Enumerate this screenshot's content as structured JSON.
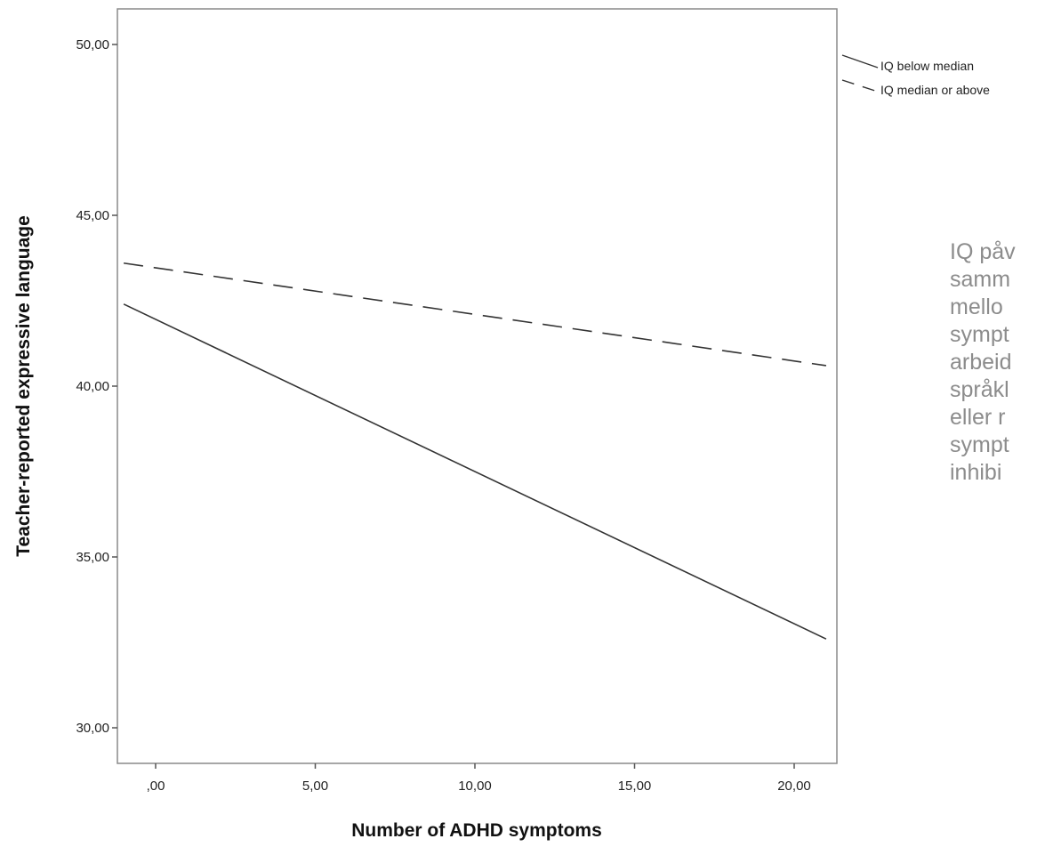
{
  "chart_data": {
    "type": "line",
    "xlabel": "Number of ADHD symptoms",
    "ylabel": "Teacher-reported expressive language",
    "xlim": [
      -1,
      21
    ],
    "ylim": [
      29,
      51
    ],
    "x_ticks": [
      0,
      5,
      10,
      15,
      20
    ],
    "x_tick_labels": [
      ",00",
      "5,00",
      "10,00",
      "15,00",
      "20,00"
    ],
    "y_ticks": [
      30,
      35,
      40,
      45,
      50
    ],
    "y_tick_labels": [
      "30,00",
      "35,00",
      "40,00",
      "45,00",
      "50,00"
    ],
    "grid": false,
    "legend_position": "outside-top-right",
    "series": [
      {
        "name": "IQ below median",
        "style": "solid",
        "color": "#333333",
        "x": [
          -1,
          21
        ],
        "y": [
          42.4,
          32.6
        ]
      },
      {
        "name": "IQ median or above",
        "style": "dashed",
        "color": "#333333",
        "x": [
          -1,
          21
        ],
        "y": [
          43.6,
          40.6
        ]
      }
    ]
  },
  "annotation": {
    "color": "#8c8c8c",
    "lines": [
      "IQ påv",
      "samm",
      "mello",
      "sympt",
      "arbeid",
      "språkl",
      "eller r",
      "sympt",
      "inhibi"
    ]
  }
}
